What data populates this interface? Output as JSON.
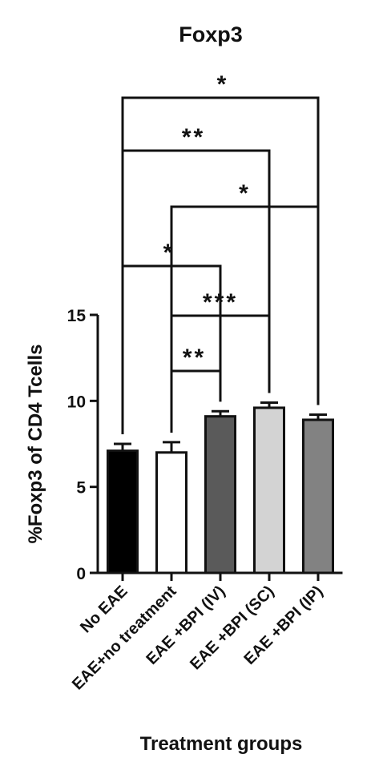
{
  "chart_data": {
    "type": "bar",
    "title": "Foxp3",
    "xlabel": "Treatment groups",
    "ylabel": "%Foxp3 of CD4 Tcells",
    "ylim": [
      0,
      15
    ],
    "yticks": [
      0,
      5,
      10,
      15
    ],
    "categories": [
      "No EAE",
      "EAE+no treatment",
      "EAE +BPI (IV)",
      "EAE +BPI (SC)",
      "EAE +BPI (IP)"
    ],
    "values": [
      7.1,
      7.0,
      9.1,
      9.6,
      8.9
    ],
    "errors": [
      0.4,
      0.6,
      0.3,
      0.3,
      0.3
    ],
    "colors": [
      "#000000",
      "#ffffff",
      "#5a5a5a",
      "#d3d3d3",
      "#828282"
    ],
    "significance": [
      {
        "from": 1,
        "to": 2,
        "label": "**"
      },
      {
        "from": 1,
        "to": 3,
        "label": "***"
      },
      {
        "from": 0,
        "to": 2,
        "label": "*"
      },
      {
        "from": 1,
        "to": 4,
        "label": "*"
      },
      {
        "from": 0,
        "to": 3,
        "label": "**"
      },
      {
        "from": 0,
        "to": 4,
        "label": "*"
      }
    ]
  }
}
